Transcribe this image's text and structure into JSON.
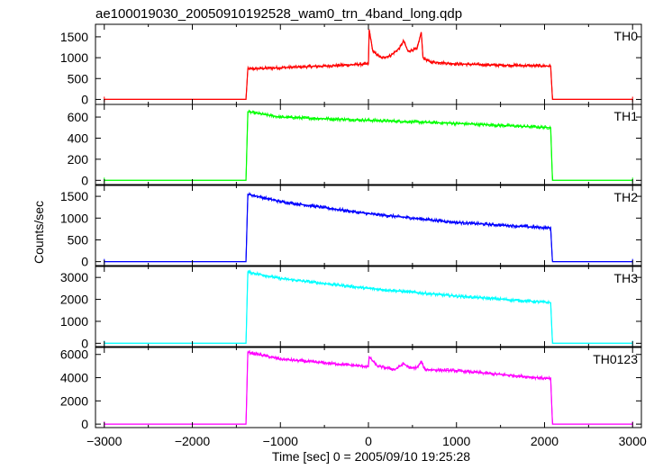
{
  "title": "ae100019030_20050910192528_wam0_trn_4band_long.qdp",
  "chart_data": {
    "type": "line",
    "title": "ae100019030_20050910192528_wam0_trn_4band_long.qdp",
    "xlabel": "Time [sec] 0 = 2005/09/10 19:25:28",
    "ylabel": "Counts/sec",
    "xlim": [
      -3100,
      3100
    ],
    "x_ticks": [
      -3000,
      -2000,
      -1000,
      0,
      1000,
      2000,
      3000
    ],
    "x_tick_labels": [
      "−3000",
      "−2000",
      "−1000",
      "0",
      "1000",
      "2000",
      "3000"
    ],
    "grid": false,
    "panels": [
      {
        "name": "TH0",
        "color": "#ff0000",
        "ylim": [
          -120,
          1800
        ],
        "y_ticks": [
          0,
          500,
          1000,
          1500
        ],
        "x": [
          -3000,
          -1390,
          -1370,
          -1000,
          -500,
          0,
          8,
          50,
          150,
          250,
          350,
          400,
          450,
          520,
          550,
          600,
          620,
          700,
          1000,
          1500,
          2070,
          2090,
          3000
        ],
        "y": [
          0,
          0,
          730,
          760,
          800,
          850,
          1680,
          1150,
          990,
          1050,
          1220,
          1400,
          1150,
          1200,
          1200,
          1610,
          1000,
          900,
          850,
          820,
          800,
          0,
          0
        ]
      },
      {
        "name": "TH1",
        "color": "#00ff00",
        "ylim": [
          -40,
          720
        ],
        "y_ticks": [
          0,
          200,
          400,
          600
        ],
        "x": [
          -3000,
          -1390,
          -1370,
          -1000,
          0,
          1000,
          2070,
          2090,
          3000
        ],
        "y": [
          0,
          0,
          650,
          600,
          570,
          540,
          500,
          0,
          0
        ]
      },
      {
        "name": "TH2",
        "color": "#0000ff",
        "ylim": [
          -90,
          1750
        ],
        "y_ticks": [
          0,
          500,
          1000,
          1500
        ],
        "x": [
          -3000,
          -1390,
          -1370,
          -1000,
          0,
          1000,
          2070,
          2090,
          3000
        ],
        "y": [
          0,
          0,
          1550,
          1380,
          1100,
          900,
          770,
          0,
          0
        ]
      },
      {
        "name": "TH3",
        "color": "#00ffff",
        "ylim": [
          -150,
          3500
        ],
        "y_ticks": [
          0,
          1000,
          2000,
          3000
        ],
        "x": [
          -3000,
          -1390,
          -1370,
          -1000,
          0,
          1000,
          2070,
          2090,
          3000
        ],
        "y": [
          0,
          0,
          3250,
          2950,
          2500,
          2150,
          1850,
          0,
          0
        ]
      },
      {
        "name": "TH0123",
        "color": "#ff00ff",
        "ylim": [
          -300,
          6600
        ],
        "y_ticks": [
          0,
          2000,
          4000,
          6000
        ],
        "x": [
          -3000,
          -1390,
          -1370,
          -1000,
          0,
          8,
          100,
          300,
          400,
          480,
          560,
          600,
          640,
          1000,
          2070,
          2090,
          3000
        ],
        "y": [
          0,
          0,
          6200,
          5600,
          4950,
          5800,
          5000,
          4700,
          5200,
          4800,
          4900,
          5400,
          4700,
          4600,
          3900,
          0,
          0
        ]
      }
    ]
  }
}
